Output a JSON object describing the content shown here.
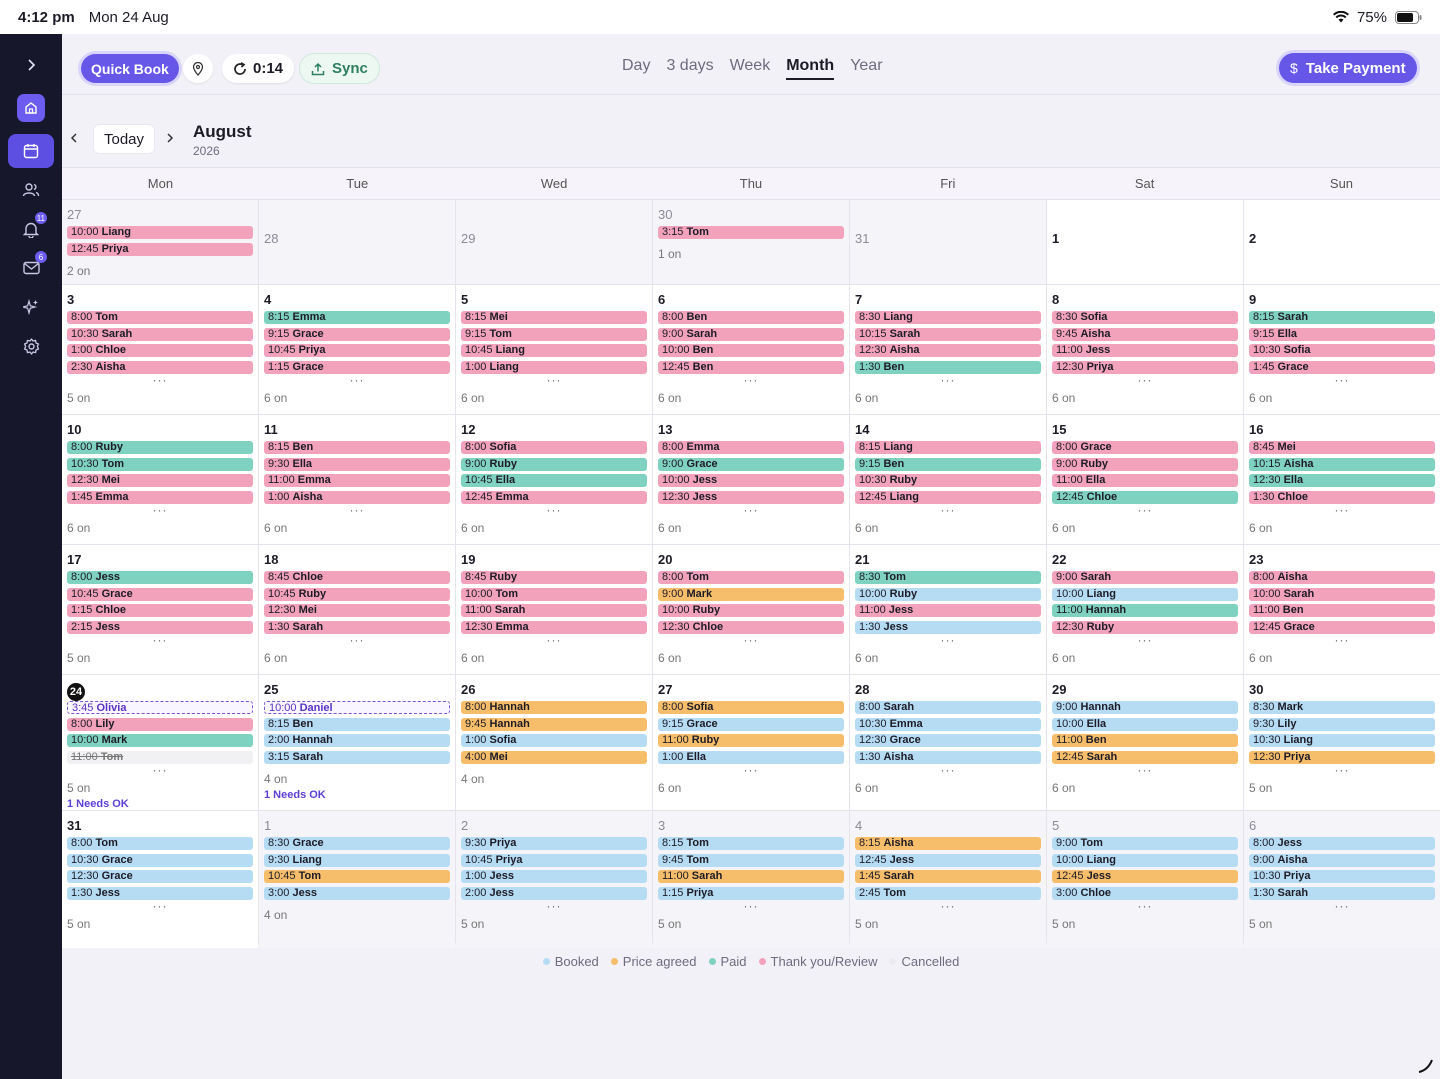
{
  "status_bar": {
    "time": "4:12 pm",
    "date": "Mon 24 Aug",
    "battery": "75%"
  },
  "sidebar": {
    "items": [
      {
        "name": "expand",
        "icon": "chevron-right-icon"
      },
      {
        "name": "home",
        "icon": "home-icon"
      },
      {
        "name": "calendar",
        "icon": "calendar-icon"
      },
      {
        "name": "clients",
        "icon": "users-icon"
      },
      {
        "name": "notifications",
        "icon": "bell-icon",
        "badge": "11"
      },
      {
        "name": "messages",
        "icon": "mail-icon",
        "badge": "6"
      },
      {
        "name": "magic",
        "icon": "sparkle-icon"
      },
      {
        "name": "settings",
        "icon": "gear-icon"
      }
    ]
  },
  "toolbar": {
    "quick_book": "Quick Book",
    "timer": "0:14",
    "sync": "Sync",
    "take_payment": "Take Payment",
    "views": [
      "Day",
      "3 days",
      "Week",
      "Month",
      "Year"
    ],
    "active_view": "Month"
  },
  "nav": {
    "today": "Today",
    "month": "August",
    "year": "2026"
  },
  "weekdays": [
    "Mon",
    "Tue",
    "Wed",
    "Thu",
    "Fri",
    "Sat",
    "Sun"
  ],
  "colors": {
    "thanks": "#f2a3bb",
    "paid": "#7fd1c0",
    "booked": "#b5dcf3",
    "price": "#f6bd6b",
    "accent": "#6657e8"
  },
  "legend": [
    {
      "label": "Booked",
      "color": "#b5dcf3"
    },
    {
      "label": "Price agreed",
      "color": "#f6bd6b"
    },
    {
      "label": "Paid",
      "color": "#7fd1c0"
    },
    {
      "label": "Thank you/Review",
      "color": "#f2a3bb"
    },
    {
      "label": "Cancelled",
      "color": "#ecebf0"
    }
  ],
  "weeks": [
    [
      {
        "day": "27",
        "other": true,
        "events": [
          [
            "10:00",
            "Liang",
            "thanks"
          ],
          [
            "12:45",
            "Priya",
            "thanks"
          ]
        ],
        "more": false,
        "count": "2 on"
      },
      {
        "day": "28",
        "other": true,
        "events": [],
        "more": false,
        "count": ""
      },
      {
        "day": "29",
        "other": true,
        "events": [],
        "more": false,
        "count": ""
      },
      {
        "day": "30",
        "other": true,
        "events": [
          [
            "3:15",
            "Tom",
            "thanks"
          ]
        ],
        "more": false,
        "count": "1 on"
      },
      {
        "day": "31",
        "other": true,
        "events": [],
        "more": false,
        "count": ""
      },
      {
        "day": "1",
        "other": false,
        "events": [],
        "more": false,
        "count": ""
      },
      {
        "day": "2",
        "other": false,
        "events": [],
        "more": false,
        "count": ""
      }
    ],
    [
      {
        "day": "3",
        "events": [
          [
            "8:00",
            "Tom",
            "thanks"
          ],
          [
            "10:30",
            "Sarah",
            "thanks"
          ],
          [
            "1:00",
            "Chloe",
            "thanks"
          ],
          [
            "2:30",
            "Aisha",
            "thanks"
          ]
        ],
        "more": true,
        "count": "5 on"
      },
      {
        "day": "4",
        "events": [
          [
            "8:15",
            "Emma",
            "paid"
          ],
          [
            "9:15",
            "Grace",
            "thanks"
          ],
          [
            "10:45",
            "Priya",
            "thanks"
          ],
          [
            "1:15",
            "Grace",
            "thanks"
          ]
        ],
        "more": true,
        "count": "6 on"
      },
      {
        "day": "5",
        "events": [
          [
            "8:15",
            "Mei",
            "thanks"
          ],
          [
            "9:15",
            "Tom",
            "thanks"
          ],
          [
            "10:45",
            "Liang",
            "thanks"
          ],
          [
            "1:00",
            "Liang",
            "thanks"
          ]
        ],
        "more": true,
        "count": "6 on"
      },
      {
        "day": "6",
        "events": [
          [
            "8:00",
            "Ben",
            "thanks"
          ],
          [
            "9:00",
            "Sarah",
            "thanks"
          ],
          [
            "10:00",
            "Ben",
            "thanks"
          ],
          [
            "12:45",
            "Ben",
            "thanks"
          ]
        ],
        "more": true,
        "count": "6 on"
      },
      {
        "day": "7",
        "events": [
          [
            "8:30",
            "Liang",
            "thanks"
          ],
          [
            "10:15",
            "Sarah",
            "thanks"
          ],
          [
            "12:30",
            "Aisha",
            "thanks"
          ],
          [
            "1:30",
            "Ben",
            "paid"
          ]
        ],
        "more": true,
        "count": "6 on"
      },
      {
        "day": "8",
        "events": [
          [
            "8:30",
            "Sofia",
            "thanks"
          ],
          [
            "9:45",
            "Aisha",
            "thanks"
          ],
          [
            "11:00",
            "Jess",
            "thanks"
          ],
          [
            "12:30",
            "Priya",
            "thanks"
          ]
        ],
        "more": true,
        "count": "6 on"
      },
      {
        "day": "9",
        "events": [
          [
            "8:15",
            "Sarah",
            "paid"
          ],
          [
            "9:15",
            "Ella",
            "thanks"
          ],
          [
            "10:30",
            "Sofia",
            "thanks"
          ],
          [
            "1:45",
            "Grace",
            "thanks"
          ]
        ],
        "more": true,
        "count": "6 on"
      }
    ],
    [
      {
        "day": "10",
        "events": [
          [
            "8:00",
            "Ruby",
            "paid"
          ],
          [
            "10:30",
            "Tom",
            "paid"
          ],
          [
            "12:30",
            "Mei",
            "thanks"
          ],
          [
            "1:45",
            "Emma",
            "thanks"
          ]
        ],
        "more": true,
        "count": "6 on"
      },
      {
        "day": "11",
        "events": [
          [
            "8:15",
            "Ben",
            "thanks"
          ],
          [
            "9:30",
            "Ella",
            "thanks"
          ],
          [
            "11:00",
            "Emma",
            "thanks"
          ],
          [
            "1:00",
            "Aisha",
            "thanks"
          ]
        ],
        "more": true,
        "count": "6 on"
      },
      {
        "day": "12",
        "events": [
          [
            "8:00",
            "Sofia",
            "thanks"
          ],
          [
            "9:00",
            "Ruby",
            "paid"
          ],
          [
            "10:45",
            "Ella",
            "paid"
          ],
          [
            "12:45",
            "Emma",
            "thanks"
          ]
        ],
        "more": true,
        "count": "6 on"
      },
      {
        "day": "13",
        "events": [
          [
            "8:00",
            "Emma",
            "thanks"
          ],
          [
            "9:00",
            "Grace",
            "paid"
          ],
          [
            "10:00",
            "Jess",
            "thanks"
          ],
          [
            "12:30",
            "Jess",
            "thanks"
          ]
        ],
        "more": true,
        "count": "6 on"
      },
      {
        "day": "14",
        "events": [
          [
            "8:15",
            "Liang",
            "thanks"
          ],
          [
            "9:15",
            "Ben",
            "paid"
          ],
          [
            "10:30",
            "Ruby",
            "thanks"
          ],
          [
            "12:45",
            "Liang",
            "thanks"
          ]
        ],
        "more": true,
        "count": "6 on"
      },
      {
        "day": "15",
        "events": [
          [
            "8:00",
            "Grace",
            "thanks"
          ],
          [
            "9:00",
            "Ruby",
            "thanks"
          ],
          [
            "11:00",
            "Ella",
            "thanks"
          ],
          [
            "12:45",
            "Chloe",
            "paid"
          ]
        ],
        "more": true,
        "count": "6 on"
      },
      {
        "day": "16",
        "events": [
          [
            "8:45",
            "Mei",
            "thanks"
          ],
          [
            "10:15",
            "Aisha",
            "paid"
          ],
          [
            "12:30",
            "Ella",
            "paid"
          ],
          [
            "1:30",
            "Chloe",
            "thanks"
          ]
        ],
        "more": true,
        "count": "6 on"
      }
    ],
    [
      {
        "day": "17",
        "events": [
          [
            "8:00",
            "Jess",
            "paid"
          ],
          [
            "10:45",
            "Grace",
            "thanks"
          ],
          [
            "1:15",
            "Chloe",
            "thanks"
          ],
          [
            "2:15",
            "Jess",
            "thanks"
          ]
        ],
        "more": true,
        "count": "5 on"
      },
      {
        "day": "18",
        "events": [
          [
            "8:45",
            "Chloe",
            "thanks"
          ],
          [
            "10:45",
            "Ruby",
            "thanks"
          ],
          [
            "12:30",
            "Mei",
            "thanks"
          ],
          [
            "1:30",
            "Sarah",
            "thanks"
          ]
        ],
        "more": true,
        "count": "6 on"
      },
      {
        "day": "19",
        "events": [
          [
            "8:45",
            "Ruby",
            "thanks"
          ],
          [
            "10:00",
            "Tom",
            "thanks"
          ],
          [
            "11:00",
            "Sarah",
            "thanks"
          ],
          [
            "12:30",
            "Emma",
            "thanks"
          ]
        ],
        "more": true,
        "count": "6 on"
      },
      {
        "day": "20",
        "events": [
          [
            "8:00",
            "Tom",
            "thanks"
          ],
          [
            "9:00",
            "Mark",
            "price"
          ],
          [
            "10:00",
            "Ruby",
            "thanks"
          ],
          [
            "12:30",
            "Chloe",
            "thanks"
          ]
        ],
        "more": true,
        "count": "6 on"
      },
      {
        "day": "21",
        "events": [
          [
            "8:30",
            "Tom",
            "paid"
          ],
          [
            "10:00",
            "Ruby",
            "booked"
          ],
          [
            "11:00",
            "Jess",
            "thanks"
          ],
          [
            "1:30",
            "Jess",
            "booked"
          ]
        ],
        "more": true,
        "count": "6 on"
      },
      {
        "day": "22",
        "events": [
          [
            "9:00",
            "Sarah",
            "thanks"
          ],
          [
            "10:00",
            "Liang",
            "booked"
          ],
          [
            "11:00",
            "Hannah",
            "paid"
          ],
          [
            "12:30",
            "Ruby",
            "thanks"
          ]
        ],
        "more": true,
        "count": "6 on"
      },
      {
        "day": "23",
        "events": [
          [
            "8:00",
            "Aisha",
            "thanks"
          ],
          [
            "10:00",
            "Sarah",
            "thanks"
          ],
          [
            "11:00",
            "Ben",
            "thanks"
          ],
          [
            "12:45",
            "Grace",
            "thanks"
          ]
        ],
        "more": true,
        "count": "6 on"
      }
    ],
    [
      {
        "day": "24",
        "today": true,
        "events": [
          [
            "3:45",
            "Olivia",
            "pending"
          ],
          [
            "8:00",
            "Lily",
            "thanks"
          ],
          [
            "10:00",
            "Mark",
            "paid"
          ],
          [
            "11:00",
            "Tom",
            "cancel"
          ]
        ],
        "more": true,
        "count": "5 on",
        "needs": "1 Needs OK"
      },
      {
        "day": "25",
        "events": [
          [
            "10:00",
            "Daniel",
            "pending"
          ],
          [
            "8:15",
            "Ben",
            "booked"
          ],
          [
            "2:00",
            "Hannah",
            "booked"
          ],
          [
            "3:15",
            "Sarah",
            "booked"
          ]
        ],
        "more": false,
        "count": "4 on",
        "needs": "1 Needs OK"
      },
      {
        "day": "26",
        "events": [
          [
            "8:00",
            "Hannah",
            "price"
          ],
          [
            "9:45",
            "Hannah",
            "price"
          ],
          [
            "1:00",
            "Sofia",
            "booked"
          ],
          [
            "4:00",
            "Mei",
            "price"
          ]
        ],
        "more": false,
        "count": "4 on"
      },
      {
        "day": "27",
        "events": [
          [
            "8:00",
            "Sofia",
            "price"
          ],
          [
            "9:15",
            "Grace",
            "booked"
          ],
          [
            "11:00",
            "Ruby",
            "price"
          ],
          [
            "1:00",
            "Ella",
            "booked"
          ]
        ],
        "more": true,
        "count": "6 on"
      },
      {
        "day": "28",
        "events": [
          [
            "8:00",
            "Sarah",
            "booked"
          ],
          [
            "10:30",
            "Emma",
            "booked"
          ],
          [
            "12:30",
            "Grace",
            "booked"
          ],
          [
            "1:30",
            "Aisha",
            "booked"
          ]
        ],
        "more": true,
        "count": "6 on"
      },
      {
        "day": "29",
        "events": [
          [
            "9:00",
            "Hannah",
            "booked"
          ],
          [
            "10:00",
            "Ella",
            "booked"
          ],
          [
            "11:00",
            "Ben",
            "price"
          ],
          [
            "12:45",
            "Sarah",
            "price"
          ]
        ],
        "more": true,
        "count": "6 on"
      },
      {
        "day": "30",
        "events": [
          [
            "8:30",
            "Mark",
            "booked"
          ],
          [
            "9:30",
            "Lily",
            "booked"
          ],
          [
            "10:30",
            "Liang",
            "booked"
          ],
          [
            "12:30",
            "Priya",
            "price"
          ]
        ],
        "more": true,
        "count": "5 on"
      }
    ],
    [
      {
        "day": "31",
        "events": [
          [
            "8:00",
            "Tom",
            "booked"
          ],
          [
            "10:30",
            "Grace",
            "booked"
          ],
          [
            "12:30",
            "Grace",
            "booked"
          ],
          [
            "1:30",
            "Jess",
            "booked"
          ]
        ],
        "more": true,
        "count": "5 on"
      },
      {
        "day": "1",
        "other": true,
        "events": [
          [
            "8:30",
            "Grace",
            "booked"
          ],
          [
            "9:30",
            "Liang",
            "booked"
          ],
          [
            "10:45",
            "Tom",
            "price"
          ],
          [
            "3:00",
            "Jess",
            "booked"
          ]
        ],
        "more": false,
        "count": "4 on"
      },
      {
        "day": "2",
        "other": true,
        "events": [
          [
            "9:30",
            "Priya",
            "booked"
          ],
          [
            "10:45",
            "Priya",
            "booked"
          ],
          [
            "1:00",
            "Jess",
            "booked"
          ],
          [
            "2:00",
            "Jess",
            "booked"
          ]
        ],
        "more": true,
        "count": "5 on"
      },
      {
        "day": "3",
        "other": true,
        "events": [
          [
            "8:15",
            "Tom",
            "booked"
          ],
          [
            "9:45",
            "Tom",
            "booked"
          ],
          [
            "11:00",
            "Sarah",
            "price"
          ],
          [
            "1:15",
            "Priya",
            "booked"
          ]
        ],
        "more": true,
        "count": "5 on"
      },
      {
        "day": "4",
        "other": true,
        "events": [
          [
            "8:15",
            "Aisha",
            "price"
          ],
          [
            "12:45",
            "Jess",
            "booked"
          ],
          [
            "1:45",
            "Sarah",
            "price"
          ],
          [
            "2:45",
            "Tom",
            "booked"
          ]
        ],
        "more": true,
        "count": "5 on"
      },
      {
        "day": "5",
        "other": true,
        "events": [
          [
            "9:00",
            "Tom",
            "booked"
          ],
          [
            "10:00",
            "Liang",
            "booked"
          ],
          [
            "12:45",
            "Jess",
            "price"
          ],
          [
            "3:00",
            "Chloe",
            "booked"
          ]
        ],
        "more": true,
        "count": "5 on"
      },
      {
        "day": "6",
        "other": true,
        "events": [
          [
            "8:00",
            "Jess",
            "booked"
          ],
          [
            "9:00",
            "Aisha",
            "booked"
          ],
          [
            "10:30",
            "Priya",
            "booked"
          ],
          [
            "1:30",
            "Sarah",
            "booked"
          ]
        ],
        "more": true,
        "count": "5 on"
      }
    ]
  ]
}
